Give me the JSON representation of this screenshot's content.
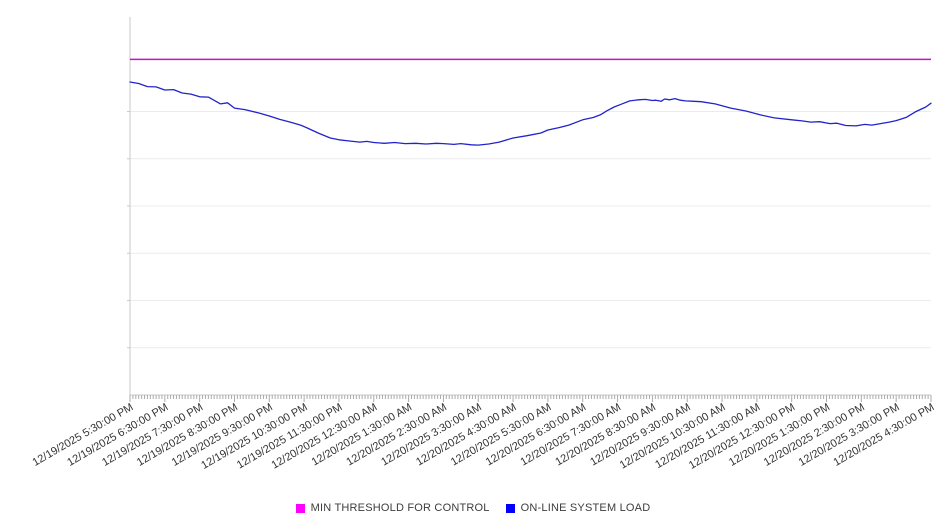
{
  "chart_data": {
    "type": "line",
    "title": "",
    "xlabel": "",
    "ylabel": "",
    "x_axis": {
      "labels": [
        "12/19/2025 5:30:00 PM",
        "12/19/2025 6:30:00 PM",
        "12/19/2025 7:30:00 PM",
        "12/19/2025 8:30:00 PM",
        "12/19/2025 9:30:00 PM",
        "12/19/2025 10:30:00 PM",
        "12/19/2025 11:30:00 PM",
        "12/20/2025 12:30:00 AM",
        "12/20/2025 1:30:00 AM",
        "12/20/2025 2:30:00 AM",
        "12/20/2025 3:30:00 AM",
        "12/20/2025 4:30:00 AM",
        "12/20/2025 5:30:00 AM",
        "12/20/2025 6:30:00 AM",
        "12/20/2025 7:30:00 AM",
        "12/20/2025 8:30:00 AM",
        "12/20/2025 9:30:00 AM",
        "12/20/2025 10:30:00 AM",
        "12/20/2025 11:30:00 AM",
        "12/20/2025 12:30:00 PM",
        "12/20/2025 1:30:00 PM",
        "12/20/2025 2:30:00 PM",
        "12/20/2025 3:30:00 PM",
        "12/20/2025 4:30:00 PM"
      ],
      "label_rotation_deg": -30,
      "hours_span": 23,
      "minor_ticks_per_hour": 12
    },
    "y_axis": {
      "min": 0,
      "max": 100,
      "tick_labels_visible": false,
      "gridline_values": [
        12.5,
        25,
        37.5,
        50,
        62.5,
        75
      ]
    },
    "grid": "horizontal",
    "legend_position": "bottom-center",
    "series": [
      {
        "name": "MIN THRESHOLD FOR CONTROL",
        "type": "constant",
        "value": 88.8,
        "line_color": "#C413C4",
        "legend_color": "#FF00FF"
      },
      {
        "name": "ON-LINE SYSTEM LOAD",
        "type": "line",
        "line_color": "#2323CC",
        "legend_color": "#0000FF",
        "points": [
          [
            0,
            82.8
          ],
          [
            0.25,
            82.4
          ],
          [
            0.5,
            81.6
          ],
          [
            0.75,
            81.5
          ],
          [
            1,
            80.7
          ],
          [
            1.25,
            80.8
          ],
          [
            1.5,
            79.9
          ],
          [
            1.75,
            79.6
          ],
          [
            2,
            78.9
          ],
          [
            2.25,
            78.8
          ],
          [
            2.6,
            77.0
          ],
          [
            2.8,
            77.3
          ],
          [
            3,
            75.9
          ],
          [
            3.3,
            75.5
          ],
          [
            3.7,
            74.6
          ],
          [
            4,
            73.8
          ],
          [
            4.3,
            72.9
          ],
          [
            4.6,
            72.2
          ],
          [
            4.9,
            71.4
          ],
          [
            5.1,
            70.6
          ],
          [
            5.4,
            69.3
          ],
          [
            5.75,
            68.0
          ],
          [
            6,
            67.5
          ],
          [
            6.3,
            67.2
          ],
          [
            6.6,
            66.9
          ],
          [
            6.8,
            67.1
          ],
          [
            7,
            66.8
          ],
          [
            7.3,
            66.6
          ],
          [
            7.6,
            66.8
          ],
          [
            7.9,
            66.5
          ],
          [
            8.2,
            66.6
          ],
          [
            8.5,
            66.4
          ],
          [
            8.8,
            66.6
          ],
          [
            9,
            66.5
          ],
          [
            9.3,
            66.3
          ],
          [
            9.5,
            66.5
          ],
          [
            9.8,
            66.2
          ],
          [
            10,
            66.1
          ],
          [
            10.3,
            66.4
          ],
          [
            10.6,
            66.9
          ],
          [
            11,
            68.0
          ],
          [
            11.4,
            68.6
          ],
          [
            11.8,
            69.3
          ],
          [
            12,
            70.1
          ],
          [
            12.3,
            70.7
          ],
          [
            12.6,
            71.4
          ],
          [
            13,
            72.8
          ],
          [
            13.3,
            73.4
          ],
          [
            13.5,
            74.1
          ],
          [
            13.7,
            75.2
          ],
          [
            13.9,
            76.2
          ],
          [
            14.1,
            76.9
          ],
          [
            14.35,
            77.8
          ],
          [
            14.6,
            78.1
          ],
          [
            14.8,
            78.2
          ],
          [
            15,
            77.9
          ],
          [
            15.1,
            78.0
          ],
          [
            15.25,
            77.7
          ],
          [
            15.35,
            78.3
          ],
          [
            15.5,
            78.1
          ],
          [
            15.65,
            78.4
          ],
          [
            15.8,
            78.0
          ],
          [
            15.95,
            77.8
          ],
          [
            16.2,
            77.7
          ],
          [
            16.4,
            77.6
          ],
          [
            16.8,
            77.0
          ],
          [
            17,
            76.5
          ],
          [
            17.25,
            75.9
          ],
          [
            17.7,
            75.1
          ],
          [
            18.1,
            74.1
          ],
          [
            18.5,
            73.3
          ],
          [
            19,
            72.8
          ],
          [
            19.3,
            72.5
          ],
          [
            19.55,
            72.2
          ],
          [
            19.8,
            72.3
          ],
          [
            20.1,
            71.8
          ],
          [
            20.3,
            71.9
          ],
          [
            20.55,
            71.3
          ],
          [
            20.85,
            71.2
          ],
          [
            21.1,
            71.6
          ],
          [
            21.3,
            71.4
          ],
          [
            21.55,
            71.8
          ],
          [
            21.8,
            72.2
          ],
          [
            22,
            72.6
          ],
          [
            22.3,
            73.5
          ],
          [
            22.55,
            74.9
          ],
          [
            22.85,
            76.2
          ],
          [
            23,
            77.2
          ]
        ]
      }
    ],
    "colors": {
      "gridline": "#ececec",
      "axis_line": "#c8c8c8",
      "tick_mark": "#aaaaaa",
      "tick_text": "#333333"
    }
  }
}
